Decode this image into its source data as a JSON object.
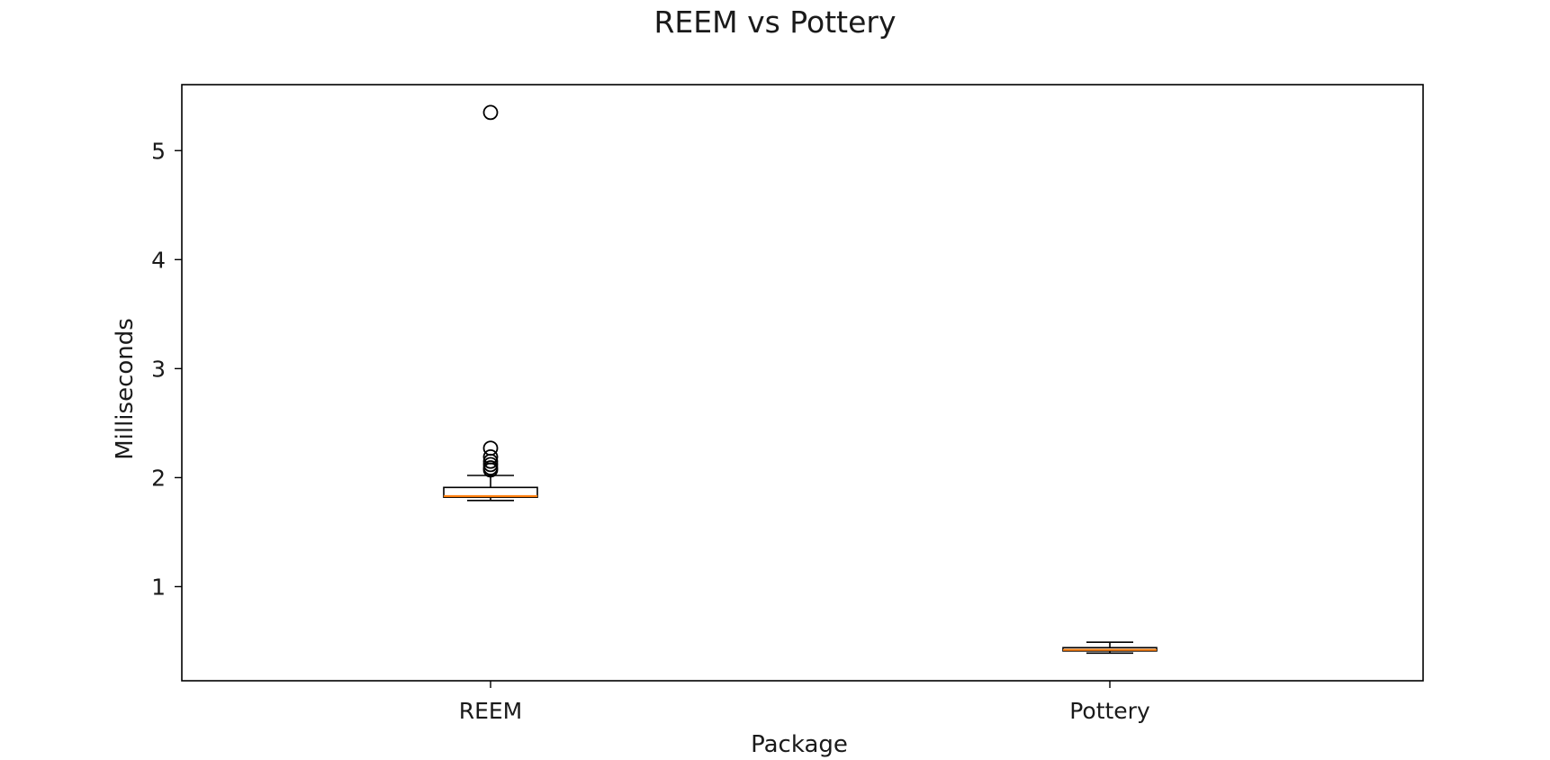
{
  "chart_data": {
    "type": "box",
    "title": "REEM vs Pottery",
    "xlabel": "Package",
    "ylabel": "Milliseconds",
    "ylim": [
      0.1364,
      5.6052
    ],
    "yticks": [
      "1",
      "2",
      "3",
      "4",
      "5"
    ],
    "ytick_values": [
      1,
      2,
      3,
      4,
      5
    ],
    "grid": false,
    "legend": "none",
    "categories": [
      "REEM",
      "Pottery"
    ],
    "boxes": [
      {
        "category": "REEM",
        "whisker_low": 1.79,
        "q1": 1.82,
        "median": 1.83,
        "q3": 1.91,
        "whisker_high": 2.02,
        "outliers": [
          2.07,
          2.09,
          2.12,
          2.15,
          2.19,
          2.27,
          5.35
        ]
      },
      {
        "category": "Pottery",
        "whisker_low": 0.39,
        "q1": 0.41,
        "median": 0.42,
        "q3": 0.44,
        "whisker_high": 0.49,
        "outliers": []
      }
    ],
    "colors": {
      "box": "#000000",
      "median": "#ff7f0e",
      "outlier": "#000000"
    }
  }
}
